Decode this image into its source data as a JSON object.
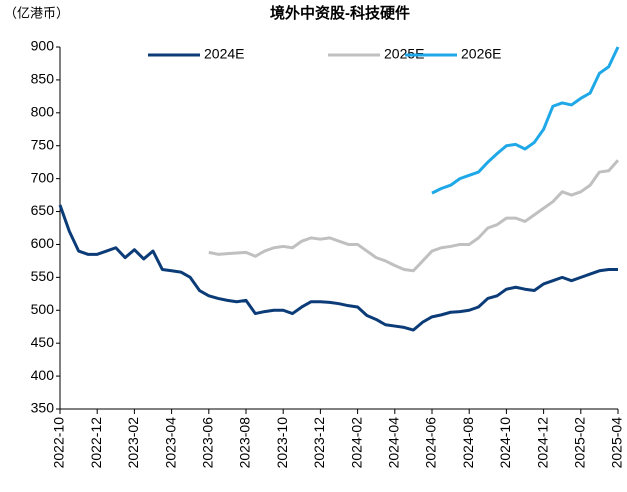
{
  "chart_data": {
    "type": "line",
    "title": "境外中资股-科技硬件",
    "unit_label": "（亿港币）",
    "categories": [
      "2022-10",
      null,
      null,
      null,
      "2022-12",
      null,
      null,
      null,
      "2023-02",
      null,
      null,
      null,
      "2023-04",
      null,
      null,
      null,
      "2023-06",
      null,
      null,
      null,
      "2023-08",
      null,
      null,
      null,
      "2023-10",
      null,
      null,
      null,
      "2023-12",
      null,
      null,
      null,
      "2024-02",
      null,
      null,
      null,
      "2024-04",
      null,
      null,
      null,
      "2024-06",
      null,
      null,
      null,
      "2024-08",
      null,
      null,
      null,
      "2024-10",
      null,
      null,
      null,
      "2024-12",
      null,
      null,
      null,
      "2025-02",
      null,
      null,
      null,
      "2025-04"
    ],
    "series": [
      {
        "name": "2024E",
        "color": "#0c3c78",
        "values": [
          660,
          620,
          590,
          585,
          585,
          590,
          595,
          580,
          592,
          578,
          590,
          562,
          560,
          558,
          550,
          530,
          522,
          518,
          515,
          513,
          515,
          495,
          498,
          500,
          500,
          495,
          505,
          513,
          513,
          512,
          510,
          507,
          505,
          492,
          486,
          478,
          476,
          474,
          470,
          482,
          490,
          493,
          497,
          498,
          500,
          505,
          518,
          522,
          532,
          535,
          532,
          530,
          540,
          545,
          550,
          545,
          550,
          555,
          560,
          562,
          562
        ]
      },
      {
        "name": "2025E",
        "color": "#c0c0c0",
        "values": [
          null,
          null,
          null,
          null,
          null,
          null,
          null,
          null,
          null,
          null,
          null,
          null,
          null,
          null,
          null,
          null,
          588,
          585,
          586,
          587,
          588,
          582,
          590,
          595,
          597,
          595,
          605,
          610,
          608,
          610,
          605,
          600,
          600,
          590,
          580,
          575,
          568,
          562,
          560,
          575,
          590,
          595,
          597,
          600,
          600,
          610,
          625,
          630,
          640,
          640,
          635,
          645,
          655,
          665,
          680,
          675,
          680,
          690,
          710,
          712,
          728
        ]
      },
      {
        "name": "2026E",
        "color": "#1fa8e8",
        "values": [
          null,
          null,
          null,
          null,
          null,
          null,
          null,
          null,
          null,
          null,
          null,
          null,
          null,
          null,
          null,
          null,
          null,
          null,
          null,
          null,
          null,
          null,
          null,
          null,
          null,
          null,
          null,
          null,
          null,
          null,
          null,
          null,
          null,
          null,
          null,
          null,
          null,
          null,
          null,
          null,
          678,
          685,
          690,
          700,
          705,
          710,
          725,
          738,
          750,
          752,
          745,
          755,
          775,
          810,
          815,
          812,
          822,
          830,
          860,
          870,
          900
        ]
      }
    ],
    "ylim": [
      350,
      900
    ],
    "yticks": [
      350,
      400,
      450,
      500,
      550,
      600,
      650,
      700,
      750,
      800,
      850,
      900
    ],
    "grid": false,
    "legend": "top"
  }
}
